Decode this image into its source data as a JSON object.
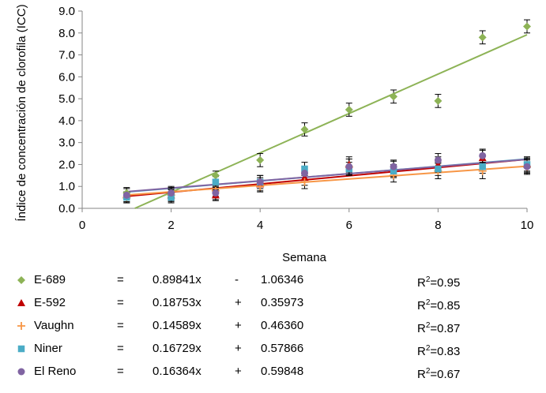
{
  "chart_data": {
    "type": "scatter",
    "title": "",
    "xlabel": "Semana",
    "ylabel": "Índice de concentración de clorofila (ICC)",
    "xlim": [
      0,
      10
    ],
    "ylim": [
      0,
      9
    ],
    "x_ticks": [
      "0",
      "2",
      "4",
      "6",
      "8",
      "10"
    ],
    "y_ticks": [
      "0.0",
      "1.0",
      "2.0",
      "3.0",
      "4.0",
      "5.0",
      "6.0",
      "7.0",
      "8.0",
      "9.0"
    ],
    "grid": false,
    "legend_position": "bottom",
    "series": [
      {
        "name": "E-689",
        "color": "#8DB356",
        "marker": "diamond",
        "x": [
          1,
          2,
          3,
          4,
          5,
          6,
          7,
          8,
          9,
          10
        ],
        "y": [
          0.7,
          0.7,
          1.5,
          2.2,
          3.6,
          4.5,
          5.1,
          4.9,
          7.8,
          8.3
        ],
        "error": [
          0.25,
          0.25,
          0.2,
          0.3,
          0.3,
          0.3,
          0.3,
          0.3,
          0.3,
          0.3
        ],
        "trend": {
          "slope": 0.89841,
          "intercept": -1.06346,
          "r2": 0.95
        }
      },
      {
        "name": "E-592",
        "color": "#C00000",
        "marker": "triangle",
        "x": [
          1,
          2,
          3,
          4,
          5,
          6,
          7,
          8,
          9,
          10
        ],
        "y": [
          0.6,
          0.6,
          0.6,
          1.1,
          1.4,
          2.0,
          1.8,
          2.0,
          2.3,
          2.0
        ],
        "error": [
          0.3,
          0.3,
          0.25,
          0.3,
          0.35,
          0.35,
          0.35,
          0.35,
          0.35,
          0.35
        ],
        "trend": {
          "slope": 0.18753,
          "intercept": 0.35973,
          "r2": 0.85
        }
      },
      {
        "name": "Vaughn",
        "color": "#F79646",
        "marker": "plus",
        "x": [
          1,
          2,
          3,
          4,
          5,
          6,
          7,
          8,
          9,
          10
        ],
        "y": [
          0.5,
          0.6,
          0.8,
          1.0,
          1.2,
          1.9,
          1.5,
          1.7,
          1.7,
          1.9
        ],
        "error": [
          0.25,
          0.25,
          0.25,
          0.25,
          0.3,
          0.35,
          0.3,
          0.35,
          0.35,
          0.35
        ],
        "trend": {
          "slope": 0.14589,
          "intercept": 0.4636,
          "r2": 0.87
        }
      },
      {
        "name": "Niner",
        "color": "#4BACC6",
        "marker": "square",
        "x": [
          1,
          2,
          3,
          4,
          5,
          6,
          7,
          8,
          9,
          10
        ],
        "y": [
          0.5,
          0.5,
          1.2,
          1.2,
          1.8,
          1.8,
          1.7,
          1.8,
          1.9,
          2.0
        ],
        "error": [
          0.25,
          0.25,
          0.25,
          0.3,
          0.3,
          0.3,
          0.3,
          0.3,
          0.3,
          0.3
        ],
        "trend": {
          "slope": 0.16729,
          "intercept": 0.57866,
          "r2": 0.83
        }
      },
      {
        "name": "El Reno",
        "color": "#8064A2",
        "marker": "circle",
        "x": [
          1,
          2,
          3,
          4,
          5,
          6,
          7,
          8,
          9,
          10
        ],
        "y": [
          0.6,
          0.7,
          0.7,
          1.2,
          1.6,
          1.9,
          1.9,
          2.2,
          2.4,
          1.9
        ],
        "error": [
          0.3,
          0.3,
          0.3,
          0.3,
          0.3,
          0.35,
          0.3,
          0.3,
          0.3,
          0.3
        ],
        "trend": {
          "slope": 0.16364,
          "intercept": 0.59848,
          "r2": 0.67
        }
      }
    ]
  },
  "legend": [
    {
      "symbol": "♦",
      "color": "#8DB356",
      "marker": "diamond",
      "name": "E-689",
      "eq": "=",
      "slope": "0.89841x",
      "op": "-",
      "intercept": "1.06346",
      "r2_prefix": "R",
      "r2_sup": "2",
      "r2_value": "=0.95"
    },
    {
      "symbol": "▲",
      "color": "#C00000",
      "marker": "triangle",
      "name": "E-592",
      "eq": "=",
      "slope": "0.18753x",
      "op": "+",
      "intercept": "0.35973",
      "r2_prefix": "R",
      "r2_sup": "2",
      "r2_value": "=0.85"
    },
    {
      "symbol": "+",
      "color": "#F79646",
      "marker": "plus",
      "name": "Vaughn",
      "eq": "=",
      "slope": "0.14589x",
      "op": "+",
      "intercept": "0.46360",
      "r2_prefix": "R",
      "r2_sup": "2",
      "r2_value": "=0.87"
    },
    {
      "symbol": "■",
      "color": "#4BACC6",
      "marker": "square",
      "name": "Niner",
      "eq": "=",
      "slope": "0.16729x",
      "op": "+",
      "intercept": "0.57866",
      "r2_prefix": "R",
      "r2_sup": "2",
      "r2_value": "=0.83"
    },
    {
      "symbol": "●",
      "color": "#8064A2",
      "marker": "circle",
      "name": "El Reno",
      "eq": "=",
      "slope": "0.16364x",
      "op": "+",
      "intercept": "0.59848",
      "r2_prefix": "R",
      "r2_sup": "2",
      "r2_value": "=0.67"
    }
  ]
}
